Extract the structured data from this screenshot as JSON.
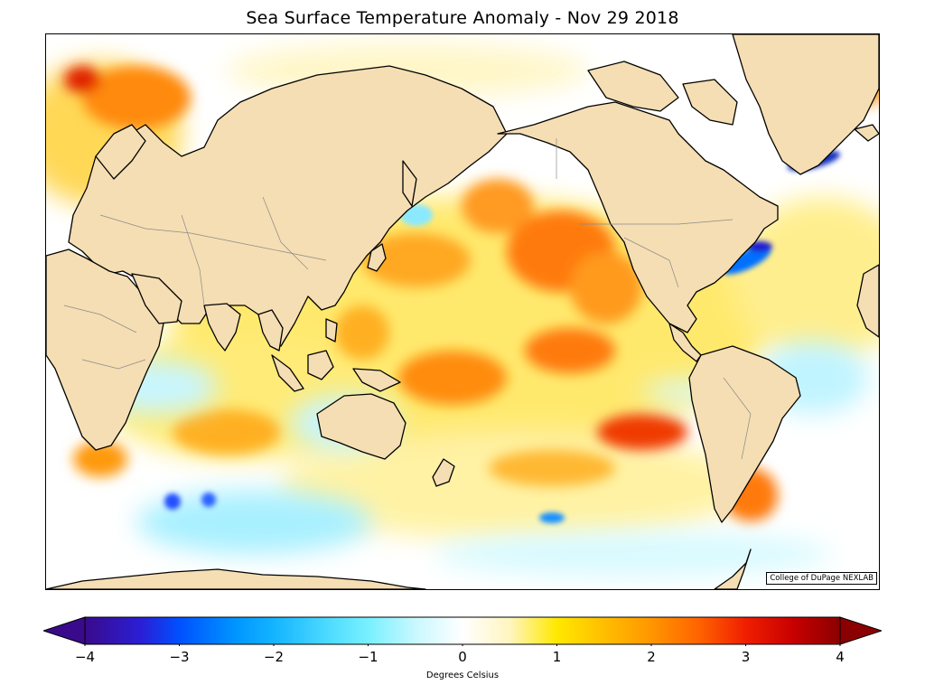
{
  "figure": {
    "title": "Sea Surface Temperature Anomaly - Nov 29 2018",
    "credit": "College of DuPage NEXLAB",
    "projection": "Mercator, Pacific-centered",
    "land_color": "#f5deb3",
    "ocean_neutral_color": "#ffffff"
  },
  "colorbar": {
    "label": "Degrees Celsius",
    "min": -4,
    "max": 4,
    "ticks": [
      {
        "value": -4,
        "label": "−4"
      },
      {
        "value": -3,
        "label": "−3"
      },
      {
        "value": -2,
        "label": "−2"
      },
      {
        "value": -1,
        "label": "−1"
      },
      {
        "value": 0,
        "label": "0"
      },
      {
        "value": 1,
        "label": "1"
      },
      {
        "value": 2,
        "label": "2"
      },
      {
        "value": 3,
        "label": "3"
      },
      {
        "value": 4,
        "label": "4"
      }
    ],
    "extend": "both",
    "stops": [
      {
        "value": -4,
        "color": "#3a0a8c"
      },
      {
        "value": -3.4,
        "color": "#2a1fd6"
      },
      {
        "value": -3,
        "color": "#0050ff"
      },
      {
        "value": -2.4,
        "color": "#0096ff"
      },
      {
        "value": -2,
        "color": "#14b4ff"
      },
      {
        "value": -1.4,
        "color": "#50dcff"
      },
      {
        "value": -1,
        "color": "#78f0ff"
      },
      {
        "value": -0.5,
        "color": "#c8f8ff"
      },
      {
        "value": 0,
        "color": "#ffffff"
      },
      {
        "value": 0.5,
        "color": "#fff5c0"
      },
      {
        "value": 1,
        "color": "#ffe800"
      },
      {
        "value": 1.5,
        "color": "#ffbe00"
      },
      {
        "value": 2,
        "color": "#ff9600"
      },
      {
        "value": 2.5,
        "color": "#ff6400"
      },
      {
        "value": 3,
        "color": "#f01e00"
      },
      {
        "value": 3.5,
        "color": "#c80000"
      },
      {
        "value": 4,
        "color": "#8b0000"
      }
    ]
  },
  "anomaly_regions": [
    {
      "name": "northeast-pacific-warm-blob",
      "value": 2.4
    },
    {
      "name": "gulf-of-alaska-warm",
      "value": 2.8
    },
    {
      "name": "central-equatorial-pacific-warm",
      "value": 1.8
    },
    {
      "name": "east-equatorial-pacific-warm",
      "value": 2.6
    },
    {
      "name": "kuroshio-extension-warm",
      "value": 2.2
    },
    {
      "name": "northeast-atlantic-warm",
      "value": 2.4
    },
    {
      "name": "southwest-atlantic-warm",
      "value": 2.2
    },
    {
      "name": "gulf-stream-cold",
      "value": -2.8
    },
    {
      "name": "greenland-coast-cold",
      "value": -3.0
    },
    {
      "name": "southern-indian-ocean-cool",
      "value": -1.6
    },
    {
      "name": "south-atlantic-cool",
      "value": -1.2
    },
    {
      "name": "equatorial-pacific-cool-tongue",
      "value": -0.8
    }
  ]
}
